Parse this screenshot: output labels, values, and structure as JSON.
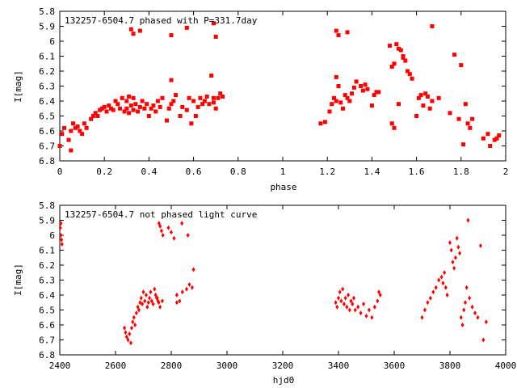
{
  "charts": [
    {
      "title": "132257-6504.7 phased with P=331.7day",
      "xlabel": "phase",
      "ylabel": "I[mag]"
    },
    {
      "title": "132257-6504.7 not phased light curve",
      "xlabel": "hjd0",
      "ylabel": "I[mag]"
    }
  ],
  "chart_data": [
    {
      "type": "scatter",
      "title": "132257-6504.7 phased with P=331.7day",
      "xlabel": "phase",
      "ylabel": "I[mag]",
      "xlim": [
        0,
        2
      ],
      "ylim": [
        6.8,
        5.8
      ],
      "y_inverted": true,
      "xticks": [
        0,
        0.2,
        0.4,
        0.6,
        0.8,
        1,
        1.2,
        1.4,
        1.6,
        1.8,
        2
      ],
      "yticks": [
        5.8,
        5.9,
        6,
        6.1,
        6.2,
        6.3,
        6.4,
        6.5,
        6.6,
        6.7,
        6.8
      ],
      "marker": "square",
      "color": "#ff0000",
      "x": [
        0.0,
        0.01,
        0.02,
        0.04,
        0.05,
        0.05,
        0.06,
        0.07,
        0.08,
        0.09,
        0.1,
        0.11,
        0.12,
        0.14,
        0.15,
        0.16,
        0.17,
        0.18,
        0.19,
        0.2,
        0.21,
        0.22,
        0.23,
        0.24,
        0.25,
        0.26,
        0.27,
        0.28,
        0.29,
        0.3,
        0.3,
        0.31,
        0.31,
        0.32,
        0.33,
        0.33,
        0.34,
        0.35,
        0.36,
        0.37,
        0.38,
        0.39,
        0.4,
        0.41,
        0.42,
        0.43,
        0.44,
        0.45,
        0.46,
        0.48,
        0.49,
        0.5,
        0.5,
        0.51,
        0.52,
        0.54,
        0.55,
        0.57,
        0.58,
        0.59,
        0.6,
        0.61,
        0.62,
        0.63,
        0.64,
        0.65,
        0.66,
        0.67,
        0.68,
        0.69,
        0.69,
        0.7,
        0.71,
        0.72,
        0.73,
        0.32,
        0.33,
        0.36,
        0.5,
        0.57,
        0.69,
        0.7,
        1.17,
        1.19,
        1.21,
        1.22,
        1.23,
        1.24,
        1.24,
        1.25,
        1.26,
        1.27,
        1.28,
        1.29,
        1.3,
        1.31,
        1.32,
        1.33,
        1.35,
        1.36,
        1.37,
        1.38,
        1.4,
        1.41,
        1.42,
        1.43,
        1.24,
        1.25,
        1.29,
        1.48,
        1.49,
        1.5,
        1.51,
        1.52,
        1.53,
        1.54,
        1.55,
        1.56,
        1.57,
        1.58,
        1.49,
        1.5,
        1.52,
        1.54,
        1.6,
        1.61,
        1.62,
        1.63,
        1.64,
        1.65,
        1.66,
        1.67,
        1.67,
        1.7,
        1.75,
        1.77,
        1.79,
        1.8,
        1.81,
        1.82,
        1.83,
        1.84,
        1.85,
        1.9,
        1.92,
        1.93,
        1.95,
        1.96,
        1.97
      ],
      "y": [
        6.7,
        6.62,
        6.58,
        6.66,
        6.6,
        6.73,
        6.55,
        6.58,
        6.57,
        6.6,
        6.62,
        6.55,
        6.58,
        6.52,
        6.5,
        6.48,
        6.5,
        6.46,
        6.45,
        6.44,
        6.47,
        6.43,
        6.45,
        6.46,
        6.4,
        6.42,
        6.45,
        6.38,
        6.47,
        6.4,
        6.45,
        6.37,
        6.48,
        6.43,
        6.38,
        6.46,
        6.42,
        6.47,
        6.44,
        6.4,
        6.45,
        6.42,
        6.5,
        6.45,
        6.43,
        6.47,
        6.4,
        6.44,
        6.38,
        6.53,
        6.45,
        6.42,
        6.26,
        6.4,
        6.36,
        6.5,
        6.44,
        6.46,
        6.38,
        6.55,
        6.4,
        6.5,
        6.44,
        6.38,
        6.42,
        6.4,
        6.37,
        6.42,
        6.23,
        6.38,
        6.41,
        6.45,
        6.38,
        6.35,
        6.37,
        5.92,
        5.95,
        5.93,
        5.96,
        5.91,
        5.88,
        5.97,
        6.55,
        6.54,
        6.47,
        6.42,
        6.38,
        6.24,
        6.4,
        6.3,
        6.41,
        6.45,
        6.36,
        6.38,
        6.4,
        6.35,
        6.31,
        6.27,
        6.3,
        6.33,
        6.29,
        6.32,
        6.43,
        6.36,
        6.34,
        6.34,
        5.93,
        5.96,
        5.94,
        6.03,
        6.55,
        6.58,
        6.02,
        6.05,
        6.06,
        6.1,
        6.13,
        6.2,
        6.22,
        6.25,
        6.17,
        6.15,
        6.42,
        6.11,
        6.5,
        6.38,
        6.36,
        6.43,
        6.35,
        6.37,
        6.45,
        6.4,
        5.9,
        6.38,
        6.48,
        6.09,
        6.52,
        6.16,
        6.69,
        6.42,
        6.55,
        6.58,
        6.52,
        6.65,
        6.62,
        6.7,
        6.66,
        6.65,
        6.63
      ]
    },
    {
      "type": "scatter",
      "title": "132257-6504.7 not phased light curve",
      "xlabel": "hjd0",
      "ylabel": "I[mag]",
      "xlim": [
        2400,
        4000
      ],
      "ylim": [
        6.8,
        5.8
      ],
      "y_inverted": true,
      "xticks": [
        2400,
        2600,
        2800,
        3000,
        3200,
        3400,
        3600,
        3800,
        4000
      ],
      "yticks": [
        5.8,
        5.9,
        6,
        6.1,
        6.2,
        6.3,
        6.4,
        6.5,
        6.6,
        6.7,
        6.8
      ],
      "marker": "diamond",
      "color": "#ff0000",
      "x": [
        2402,
        2404,
        2406,
        2408,
        2404,
        2632,
        2636,
        2640,
        2645,
        2650,
        2655,
        2658,
        2662,
        2666,
        2670,
        2675,
        2680,
        2684,
        2688,
        2692,
        2696,
        2700,
        2705,
        2710,
        2714,
        2718,
        2722,
        2726,
        2730,
        2735,
        2740,
        2744,
        2748,
        2752,
        2756,
        2760,
        2765,
        2770,
        2750,
        2755,
        2760,
        2768,
        2790,
        2800,
        2810,
        2820,
        2830,
        2840,
        2855,
        2865,
        2875,
        2880,
        2820,
        2838,
        2860,
        3390,
        3395,
        3400,
        3405,
        3410,
        3415,
        3420,
        3425,
        3430,
        3435,
        3440,
        3445,
        3450,
        3455,
        3460,
        3470,
        3480,
        3490,
        3500,
        3510,
        3520,
        3530,
        3540,
        3545,
        3550,
        3700,
        3710,
        3720,
        3730,
        3740,
        3750,
        3760,
        3770,
        3775,
        3780,
        3785,
        3790,
        3800,
        3805,
        3810,
        3815,
        3820,
        3825,
        3830,
        3835,
        3840,
        3845,
        3850,
        3855,
        3860,
        3865,
        3870,
        3880,
        3890,
        3900,
        3910,
        3920,
        3930
      ],
      "y": [
        5.95,
        5.92,
        6.03,
        6.06,
        6.0,
        6.62,
        6.65,
        6.68,
        6.7,
        6.66,
        6.72,
        6.62,
        6.58,
        6.55,
        6.6,
        6.52,
        6.48,
        6.5,
        6.45,
        6.42,
        6.46,
        6.38,
        6.44,
        6.4,
        6.48,
        6.45,
        6.42,
        6.38,
        6.44,
        6.46,
        6.36,
        6.4,
        6.42,
        6.44,
        5.92,
        5.94,
        5.97,
        6.0,
        6.42,
        6.45,
        6.48,
        6.44,
        5.95,
        5.98,
        6.02,
        6.4,
        6.44,
        6.38,
        6.36,
        6.33,
        6.35,
        6.23,
        6.45,
        5.92,
        6.0,
        6.45,
        6.48,
        6.42,
        6.38,
        6.44,
        6.36,
        6.46,
        6.42,
        6.48,
        6.4,
        6.5,
        6.44,
        6.46,
        6.42,
        6.5,
        6.48,
        6.52,
        6.46,
        6.54,
        6.5,
        6.55,
        6.48,
        6.44,
        6.38,
        6.4,
        6.55,
        6.5,
        6.45,
        6.42,
        6.38,
        6.35,
        6.3,
        6.28,
        6.32,
        6.25,
        6.35,
        6.4,
        6.05,
        6.1,
        6.18,
        6.22,
        6.15,
        6.02,
        6.08,
        6.12,
        6.55,
        6.6,
        6.5,
        6.45,
        6.35,
        5.9,
        6.42,
        6.48,
        6.52,
        6.55,
        6.07,
        6.7,
        6.58
      ]
    }
  ]
}
